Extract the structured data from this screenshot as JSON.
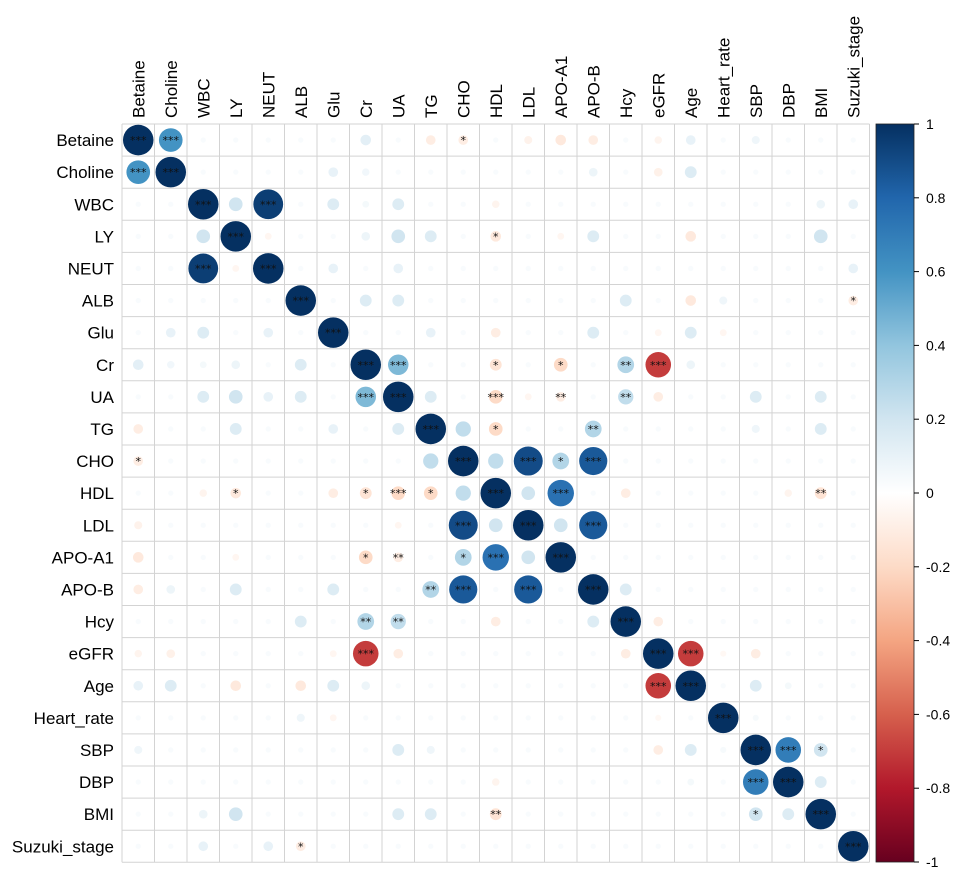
{
  "chart_data": {
    "type": "heatmap",
    "subtype": "correlation-circle-matrix",
    "variables": [
      "Betaine",
      "Choline",
      "WBC",
      "LY",
      "NEUT",
      "ALB",
      "Glu",
      "Cr",
      "UA",
      "TG",
      "CHO",
      "HDL",
      "LDL",
      "APO-A1",
      "APO-B",
      "Hcy",
      "eGFR",
      "Age",
      "Heart_rate",
      "SBP",
      "DBP",
      "BMI",
      "Suzuki_stage"
    ],
    "colorbar": {
      "ticks": [
        "1",
        "0.8",
        "0.6",
        "0.4",
        "0.2",
        "0",
        "-0.2",
        "-0.4",
        "-0.6",
        "-0.8",
        "-1"
      ],
      "range": [
        -1,
        1
      ],
      "palette": [
        "#67001f",
        "#b2182b",
        "#d6604d",
        "#f4a582",
        "#fddbc7",
        "#ffffff",
        "#d1e5f0",
        "#92c5de",
        "#4393c3",
        "#2166ac",
        "#053061"
      ]
    },
    "notable_correlations": [
      {
        "a": "Betaine",
        "b": "Choline",
        "r": 0.6,
        "sig": "***"
      },
      {
        "a": "Betaine",
        "b": "CHO",
        "r": -0.1,
        "sig": "*"
      },
      {
        "a": "WBC",
        "b": "NEUT",
        "r": 0.95,
        "sig": "***"
      },
      {
        "a": "LY",
        "b": "HDL",
        "r": -0.12,
        "sig": "*"
      },
      {
        "a": "ALB",
        "b": "Suzuki_stage",
        "r": -0.1,
        "sig": "*"
      },
      {
        "a": "Cr",
        "b": "UA",
        "r": 0.45,
        "sig": "***"
      },
      {
        "a": "Cr",
        "b": "HDL",
        "r": -0.15,
        "sig": "*"
      },
      {
        "a": "Cr",
        "b": "APO-A1",
        "r": -0.2,
        "sig": "*"
      },
      {
        "a": "Cr",
        "b": "Hcy",
        "r": 0.3,
        "sig": "**"
      },
      {
        "a": "Cr",
        "b": "eGFR",
        "r": -0.7,
        "sig": "***"
      },
      {
        "a": "UA",
        "b": "HDL",
        "r": -0.2,
        "sig": "***"
      },
      {
        "a": "UA",
        "b": "APO-A1",
        "r": -0.1,
        "sig": "**"
      },
      {
        "a": "UA",
        "b": "Hcy",
        "r": 0.25,
        "sig": "**"
      },
      {
        "a": "TG",
        "b": "HDL",
        "r": -0.2,
        "sig": "*"
      },
      {
        "a": "TG",
        "b": "APO-B",
        "r": 0.3,
        "sig": "**"
      },
      {
        "a": "CHO",
        "b": "LDL",
        "r": 0.9,
        "sig": "***"
      },
      {
        "a": "CHO",
        "b": "APO-A1",
        "r": 0.3,
        "sig": "*"
      },
      {
        "a": "CHO",
        "b": "APO-B",
        "r": 0.85,
        "sig": "***"
      },
      {
        "a": "HDL",
        "b": "APO-A1",
        "r": 0.75,
        "sig": "***"
      },
      {
        "a": "HDL",
        "b": "BMI",
        "r": -0.15,
        "sig": "**"
      },
      {
        "a": "LDL",
        "b": "APO-B",
        "r": 0.85,
        "sig": "***"
      },
      {
        "a": "eGFR",
        "b": "Age",
        "r": -0.7,
        "sig": "***"
      },
      {
        "a": "SBP",
        "b": "DBP",
        "r": 0.7,
        "sig": "***"
      },
      {
        "a": "SBP",
        "b": "BMI",
        "r": 0.2,
        "sig": "*"
      }
    ],
    "weak_correlations": [
      {
        "a": "Betaine",
        "b": "TG",
        "r": -0.1
      },
      {
        "a": "Betaine",
        "b": "LDL",
        "r": -0.07
      },
      {
        "a": "Betaine",
        "b": "APO-A1",
        "r": -0.12
      },
      {
        "a": "Betaine",
        "b": "APO-B",
        "r": -0.1
      },
      {
        "a": "Betaine",
        "b": "eGFR",
        "r": -0.06
      },
      {
        "a": "Betaine",
        "b": "Age",
        "r": 0.1
      },
      {
        "a": "Betaine",
        "b": "Cr",
        "r": 0.12
      },
      {
        "a": "Betaine",
        "b": "SBP",
        "r": 0.07
      },
      {
        "a": "Choline",
        "b": "Glu",
        "r": 0.1
      },
      {
        "a": "Choline",
        "b": "Cr",
        "r": 0.06
      },
      {
        "a": "Choline",
        "b": "Age",
        "r": 0.15
      },
      {
        "a": "Choline",
        "b": "APO-B",
        "r": 0.08
      },
      {
        "a": "Choline",
        "b": "eGFR",
        "r": -0.08
      },
      {
        "a": "WBC",
        "b": "LY",
        "r": 0.2
      },
      {
        "a": "WBC",
        "b": "Glu",
        "r": 0.15
      },
      {
        "a": "WBC",
        "b": "UA",
        "r": 0.15
      },
      {
        "a": "WBC",
        "b": "HDL",
        "r": -0.06
      },
      {
        "a": "WBC",
        "b": "BMI",
        "r": 0.08
      },
      {
        "a": "WBC",
        "b": "Suzuki_stage",
        "r": 0.1
      },
      {
        "a": "WBC",
        "b": "Cr",
        "r": 0.05
      },
      {
        "a": "LY",
        "b": "NEUT",
        "r": -0.05
      },
      {
        "a": "LY",
        "b": "Cr",
        "r": 0.08
      },
      {
        "a": "LY",
        "b": "UA",
        "r": 0.2
      },
      {
        "a": "LY",
        "b": "TG",
        "r": 0.15
      },
      {
        "a": "LY",
        "b": "APO-B",
        "r": 0.15
      },
      {
        "a": "LY",
        "b": "Age",
        "r": -0.12
      },
      {
        "a": "LY",
        "b": "BMI",
        "r": 0.2
      },
      {
        "a": "LY",
        "b": "APO-A1",
        "r": -0.05
      },
      {
        "a": "NEUT",
        "b": "Glu",
        "r": 0.1
      },
      {
        "a": "NEUT",
        "b": "UA",
        "r": 0.1
      },
      {
        "a": "NEUT",
        "b": "Suzuki_stage",
        "r": 0.1
      },
      {
        "a": "ALB",
        "b": "Cr",
        "r": 0.15
      },
      {
        "a": "ALB",
        "b": "UA",
        "r": 0.15
      },
      {
        "a": "ALB",
        "b": "Hcy",
        "r": 0.15
      },
      {
        "a": "ALB",
        "b": "Age",
        "r": -0.12
      },
      {
        "a": "ALB",
        "b": "Heart_rate",
        "r": 0.07
      },
      {
        "a": "Glu",
        "b": "TG",
        "r": 0.1
      },
      {
        "a": "Glu",
        "b": "HDL",
        "r": -0.1
      },
      {
        "a": "Glu",
        "b": "APO-B",
        "r": 0.15
      },
      {
        "a": "Glu",
        "b": "Age",
        "r": 0.15
      },
      {
        "a": "Glu",
        "b": "Heart_rate",
        "r": -0.05
      },
      {
        "a": "Glu",
        "b": "eGFR",
        "r": -0.05
      },
      {
        "a": "Cr",
        "b": "Age",
        "r": 0.08
      },
      {
        "a": "UA",
        "b": "TG",
        "r": 0.15
      },
      {
        "a": "UA",
        "b": "SBP",
        "r": 0.15
      },
      {
        "a": "UA",
        "b": "BMI",
        "r": 0.15
      },
      {
        "a": "UA",
        "b": "eGFR",
        "r": -0.1
      },
      {
        "a": "UA",
        "b": "LDL",
        "r": -0.05
      },
      {
        "a": "TG",
        "b": "CHO",
        "r": 0.25
      },
      {
        "a": "TG",
        "b": "BMI",
        "r": 0.15
      },
      {
        "a": "TG",
        "b": "SBP",
        "r": 0.07
      },
      {
        "a": "CHO",
        "b": "HDL",
        "r": 0.25
      },
      {
        "a": "HDL",
        "b": "LDL",
        "r": 0.2
      },
      {
        "a": "HDL",
        "b": "Hcy",
        "r": -0.1
      },
      {
        "a": "HDL",
        "b": "DBP",
        "r": -0.06
      },
      {
        "a": "LDL",
        "b": "APO-A1",
        "r": 0.2
      },
      {
        "a": "APO-B",
        "b": "Hcy",
        "r": 0.15
      },
      {
        "a": "Hcy",
        "b": "eGFR",
        "r": -0.1
      },
      {
        "a": "eGFR",
        "b": "SBP",
        "r": -0.1
      },
      {
        "a": "eGFR",
        "b": "Heart_rate",
        "r": -0.04
      },
      {
        "a": "Age",
        "b": "SBP",
        "r": 0.15
      },
      {
        "a": "Age",
        "b": "DBP",
        "r": 0.05
      },
      {
        "a": "SBP",
        "b": "Heart_rate",
        "r": 0.04
      },
      {
        "a": "DBP",
        "b": "BMI",
        "r": 0.15
      },
      {
        "a": "BMI",
        "b": "Suzuki_stage",
        "r": 0.03
      }
    ]
  }
}
